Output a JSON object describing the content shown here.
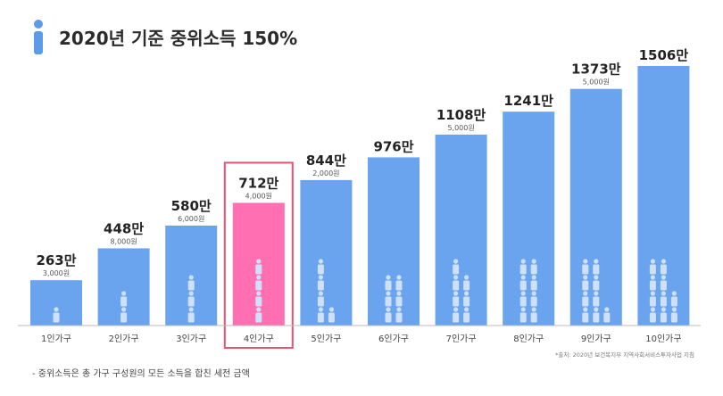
{
  "chart_data": {
    "type": "bar",
    "title": "2020년 기준 중위소득 150%",
    "categories": [
      "1인가구",
      "2인가구",
      "3인가구",
      "4인가구",
      "5인가구",
      "6인가구",
      "7인가구",
      "8인가구",
      "9인가구",
      "10인가구"
    ],
    "values": [
      263,
      448,
      580,
      712,
      844,
      976,
      1108,
      1241,
      1373,
      1506
    ],
    "value_labels": [
      "263만",
      "448만",
      "580만",
      "712만",
      "844만",
      "976만",
      "1108만",
      "1241만",
      "1373만",
      "1506만"
    ],
    "sub_labels": [
      "3,000원",
      "8,000원",
      "6,000원",
      "4,000원",
      "2,000원",
      "",
      "5,000원",
      "",
      "5,000원",
      ""
    ],
    "highlight_category": "4인가구",
    "footnote": "- 중위소득은 총 가구 구성원의 모든 소득을 합친 세전 금액",
    "source": "*출처: 2020년 보건복지부 지역사회서비스투자사업 지침",
    "colors": {
      "bar": "#6aa4ef",
      "highlight": "#ff6fb1",
      "highlight_border": "#e0566f",
      "people": "#cfe0fb",
      "icon": "#5b9be8"
    },
    "icon": "person-icon"
  }
}
